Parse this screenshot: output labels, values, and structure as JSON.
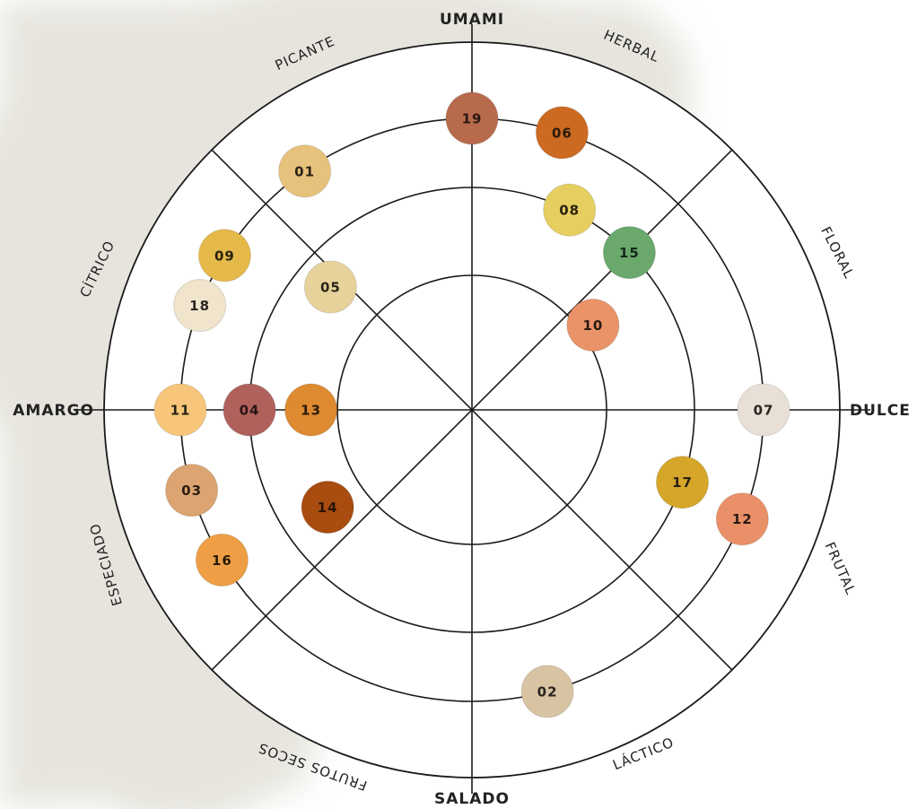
{
  "axes": {
    "top": "UMAMI",
    "bottom": "SALADO",
    "left": "AMARGO",
    "right": "DULCE"
  },
  "categories": [
    {
      "label": "PICANTE"
    },
    {
      "label": "HERBAL"
    },
    {
      "label": "FLORAL"
    },
    {
      "label": "CÍTRICO"
    },
    {
      "label": "FRUTAL"
    },
    {
      "label": "ESPECIADO"
    },
    {
      "label": "FRUTOS SECOS"
    },
    {
      "label": "LÁCTICO"
    }
  ],
  "colors": {
    "background_stain": "#e4e2da",
    "lines": "#1a1a1a",
    "text": "#222222"
  },
  "points": [
    {
      "label": "19",
      "ring": 3,
      "angle_deg": 90,
      "color": "#b76a4c",
      "text_color": "#2a1a12"
    },
    {
      "label": "06",
      "ring": 3,
      "angle_deg": 72,
      "color": "#cc6a22",
      "text_color": "#2a1a0a"
    },
    {
      "label": "01",
      "ring": 3,
      "angle_deg": 125,
      "color": "#e6c27c",
      "text_color": "#2a2318"
    },
    {
      "label": "09",
      "ring": 3,
      "angle_deg": 148,
      "color": "#e5b94a",
      "text_color": "#2a2310"
    },
    {
      "label": "18",
      "ring": 3,
      "angle_deg": 159,
      "color": "#f0e4cc",
      "text_color": "#2a2520"
    },
    {
      "label": "11",
      "ring": 3,
      "angle_deg": 180,
      "color": "#f7c67a",
      "text_color": "#2a2318"
    },
    {
      "label": "03",
      "ring": 3,
      "angle_deg": 196,
      "color": "#dba470",
      "text_color": "#2a1d12"
    },
    {
      "label": "16",
      "ring": 3,
      "angle_deg": 211,
      "color": "#ee9f45",
      "text_color": "#2a1a0a"
    },
    {
      "label": "07",
      "ring": 3,
      "angle_deg": 0,
      "color": "#e8e0d6",
      "text_color": "#2a2520"
    },
    {
      "label": "12",
      "ring": 3,
      "angle_deg": 338,
      "color": "#ea9068",
      "text_color": "#2a1a12"
    },
    {
      "label": "02",
      "ring": 3,
      "angle_deg": 285,
      "color": "#d8c3a3",
      "text_color": "#2a2520"
    },
    {
      "label": "08",
      "ring": 2,
      "angle_deg": 64,
      "color": "#e6cf60",
      "text_color": "#2a2310"
    },
    {
      "label": "15",
      "ring": 2,
      "angle_deg": 45,
      "color": "#6aa86c",
      "text_color": "#14291a"
    },
    {
      "label": "17",
      "ring": 2,
      "angle_deg": 341,
      "color": "#d6a62a",
      "text_color": "#2a2010"
    },
    {
      "label": "04",
      "ring": 2,
      "angle_deg": 180,
      "color": "#b0615c",
      "text_color": "#2a1414"
    },
    {
      "label": "05",
      "ring": 1.6,
      "angle_deg": 139,
      "color": "#e6d29a",
      "text_color": "#2a2518"
    },
    {
      "label": "13",
      "ring": 1.3,
      "angle_deg": 180,
      "color": "#dd8a30",
      "text_color": "#2a1a0a"
    },
    {
      "label": "14",
      "ring": 1.45,
      "angle_deg": 214,
      "color": "#a84c10",
      "text_color": "#2a1408"
    },
    {
      "label": "10",
      "ring": 1.15,
      "angle_deg": 35,
      "color": "#ea9368",
      "text_color": "#2a1a12"
    }
  ]
}
